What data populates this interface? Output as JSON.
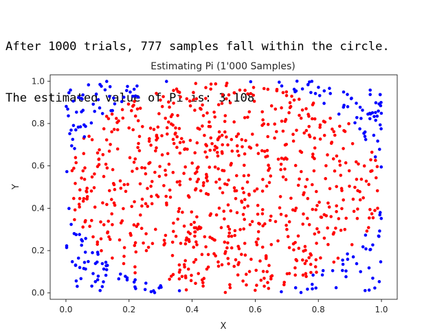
{
  "output": {
    "lines": [
      "After 1000 trials, 777 samples fall within the circle.",
      "The estimated value of Pi is: 3.108"
    ]
  },
  "chart_data": {
    "type": "scatter",
    "title": "Estimating Pi (1'000 Samples)",
    "xlabel": "X",
    "ylabel": "Y",
    "xlim": [
      -0.05,
      1.05
    ],
    "ylim": [
      -0.03,
      1.03
    ],
    "xticks": [
      0.0,
      0.2,
      0.4,
      0.6,
      0.8,
      1.0
    ],
    "yticks": [
      0.0,
      0.2,
      0.4,
      0.6,
      0.8,
      1.0
    ],
    "xtick_labels": [
      "0.0",
      "0.2",
      "0.4",
      "0.6",
      "0.8",
      "1.0"
    ],
    "ytick_labels": [
      "0.0",
      "0.2",
      "0.4",
      "0.6",
      "0.8",
      "1.0"
    ],
    "grid": false,
    "legend": "none",
    "total_samples": 1000,
    "inside_count": 777,
    "pi_estimate": 3.108,
    "colors": {
      "inside": "#ff0000",
      "outside": "#0000ff"
    }
  }
}
